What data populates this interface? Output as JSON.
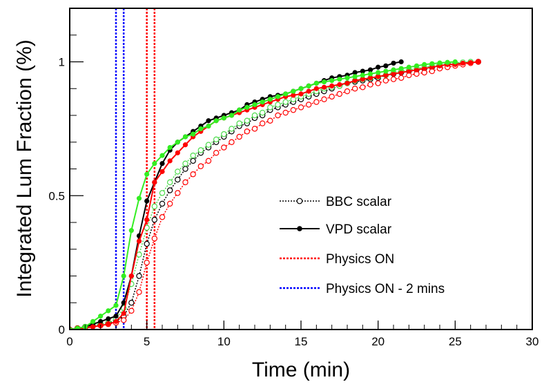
{
  "chart_data": {
    "type": "line",
    "title": "",
    "xlabel": "Time (min)",
    "ylabel": "Integrated Lum Fraction (%)",
    "xlim": [
      0,
      30
    ],
    "ylim": [
      0,
      1.2
    ],
    "x_ticks": [
      0,
      5,
      10,
      15,
      20,
      25,
      30
    ],
    "x_tick_labels": [
      "0",
      "5",
      "10",
      "15",
      "20",
      "25",
      "30"
    ],
    "y_ticks": [
      0,
      0.5,
      1
    ],
    "y_tick_labels": [
      "0",
      "0.5",
      "1"
    ],
    "grid": false,
    "legend_position": "right",
    "legend": [
      {
        "label": "BBC scalar",
        "style": "dotted-open-circle",
        "color": "#000000"
      },
      {
        "label": "VPD scalar",
        "style": "solid-filled-circle",
        "color": "#000000"
      },
      {
        "label": "Physics ON",
        "style": "dotted-line",
        "color": "#ff0000"
      },
      {
        "label": "Physics ON - 2 mins",
        "style": "dotted-line",
        "color": "#0000ff"
      }
    ],
    "vertical_lines": [
      {
        "x": 3.0,
        "color": "#0000ff"
      },
      {
        "x": 3.5,
        "color": "#0000ff"
      },
      {
        "x": 5.0,
        "color": "#ff0000"
      },
      {
        "x": 5.5,
        "color": "#ff0000"
      }
    ],
    "series": [
      {
        "name": "BBC scalar",
        "color": "#000000",
        "marker": "open",
        "line": "dotted",
        "x": [
          0,
          0.5,
          1,
          1.5,
          2,
          2.5,
          3,
          3.5,
          4,
          4.5,
          5,
          5.5,
          6,
          6.5,
          7,
          7.5,
          8,
          8.5,
          9,
          9.5,
          10,
          10.5,
          11,
          11.5,
          12,
          12.5,
          13,
          13.5,
          14,
          14.5,
          15,
          15.5,
          16,
          16.5,
          17,
          17.5,
          18,
          18.5,
          19,
          19.5,
          20,
          20.5,
          21,
          21.5,
          22,
          22.5,
          23,
          23.5,
          24,
          24.5,
          25,
          25.5,
          26,
          26.5
        ],
        "y": [
          0,
          0.005,
          0.01,
          0.015,
          0.02,
          0.025,
          0.03,
          0.05,
          0.1,
          0.2,
          0.32,
          0.41,
          0.47,
          0.52,
          0.56,
          0.6,
          0.63,
          0.66,
          0.68,
          0.7,
          0.72,
          0.74,
          0.76,
          0.77,
          0.79,
          0.8,
          0.82,
          0.83,
          0.84,
          0.85,
          0.86,
          0.87,
          0.88,
          0.89,
          0.9,
          0.91,
          0.92,
          0.925,
          0.93,
          0.935,
          0.94,
          0.95,
          0.955,
          0.96,
          0.965,
          0.97,
          0.975,
          0.98,
          0.985,
          0.99,
          0.993,
          0.996,
          0.998,
          1.0
        ]
      },
      {
        "name": "",
        "color": "#4ddc4d",
        "marker": "open",
        "line": "dotted",
        "x": [
          0,
          0.5,
          1,
          1.5,
          2,
          2.5,
          3,
          3.5,
          4,
          4.5,
          5,
          5.5,
          6,
          6.5,
          7,
          7.5,
          8,
          8.5,
          9,
          9.5,
          10,
          10.5,
          11,
          11.5,
          12,
          12.5,
          13,
          13.5,
          14,
          14.5,
          15,
          15.5,
          16,
          16.5,
          17,
          17.5,
          18,
          18.5,
          19,
          19.5,
          20,
          20.5,
          21,
          21.5,
          22,
          22.5,
          23,
          23.5,
          24,
          24.5,
          25,
          25.5,
          26
        ],
        "y": [
          0,
          0.005,
          0.01,
          0.015,
          0.02,
          0.025,
          0.04,
          0.08,
          0.17,
          0.28,
          0.38,
          0.46,
          0.51,
          0.55,
          0.59,
          0.62,
          0.65,
          0.67,
          0.69,
          0.71,
          0.73,
          0.75,
          0.77,
          0.78,
          0.8,
          0.81,
          0.83,
          0.84,
          0.85,
          0.86,
          0.87,
          0.88,
          0.89,
          0.9,
          0.905,
          0.91,
          0.92,
          0.93,
          0.935,
          0.94,
          0.945,
          0.95,
          0.96,
          0.965,
          0.97,
          0.975,
          0.98,
          0.985,
          0.99,
          0.993,
          0.996,
          0.998,
          1.0
        ]
      },
      {
        "name": "",
        "color": "#ff0000",
        "marker": "open",
        "line": "dotted",
        "x": [
          0,
          0.5,
          1,
          1.5,
          2,
          2.5,
          3,
          3.5,
          4,
          4.5,
          5,
          5.5,
          6,
          6.5,
          7,
          7.5,
          8,
          8.5,
          9,
          9.5,
          10,
          10.5,
          11,
          11.5,
          12,
          12.5,
          13,
          13.5,
          14,
          14.5,
          15,
          15.5,
          16,
          16.5,
          17,
          17.5,
          18,
          18.5,
          19,
          19.5,
          20,
          20.5,
          21,
          21.5,
          22,
          22.5,
          23,
          23.5,
          24,
          24.5,
          25,
          25.5,
          26,
          26.5
        ],
        "y": [
          0,
          0.005,
          0.008,
          0.012,
          0.015,
          0.02,
          0.025,
          0.035,
          0.07,
          0.14,
          0.25,
          0.34,
          0.42,
          0.47,
          0.51,
          0.55,
          0.58,
          0.61,
          0.63,
          0.66,
          0.68,
          0.7,
          0.72,
          0.74,
          0.75,
          0.77,
          0.78,
          0.8,
          0.81,
          0.82,
          0.83,
          0.84,
          0.85,
          0.86,
          0.87,
          0.88,
          0.89,
          0.9,
          0.905,
          0.915,
          0.92,
          0.93,
          0.935,
          0.94,
          0.95,
          0.955,
          0.96,
          0.965,
          0.975,
          0.98,
          0.985,
          0.99,
          0.995,
          1.0
        ]
      },
      {
        "name": "VPD scalar",
        "color": "#000000",
        "marker": "filled",
        "line": "solid",
        "x": [
          0,
          0.5,
          1,
          1.5,
          2,
          2.5,
          3,
          3.5,
          4,
          4.5,
          5,
          5.5,
          6,
          6.5,
          7,
          7.5,
          8,
          8.5,
          9,
          9.5,
          10,
          10.5,
          11,
          11.5,
          12,
          12.5,
          13,
          13.5,
          14,
          14.5,
          15,
          15.5,
          16,
          16.5,
          17,
          17.5,
          18,
          18.5,
          19,
          19.5,
          20,
          20.5,
          21,
          21.5
        ],
        "y": [
          0,
          0.005,
          0.01,
          0.02,
          0.03,
          0.04,
          0.05,
          0.1,
          0.2,
          0.35,
          0.48,
          0.55,
          0.62,
          0.67,
          0.7,
          0.72,
          0.74,
          0.76,
          0.78,
          0.79,
          0.8,
          0.81,
          0.82,
          0.84,
          0.85,
          0.86,
          0.87,
          0.875,
          0.88,
          0.89,
          0.9,
          0.91,
          0.92,
          0.93,
          0.94,
          0.945,
          0.95,
          0.96,
          0.965,
          0.97,
          0.98,
          0.985,
          0.995,
          1.0
        ]
      },
      {
        "name": "",
        "color": "#ff0000",
        "marker": "filled",
        "line": "solid",
        "x": [
          0,
          0.5,
          1,
          1.5,
          2,
          2.5,
          3,
          3.5,
          4,
          4.5,
          5,
          5.5,
          6,
          6.5,
          7,
          7.5,
          8,
          8.5,
          9,
          9.5,
          10,
          10.5,
          11,
          11.5,
          12,
          12.5,
          13,
          13.5,
          14,
          14.5,
          15,
          15.5,
          16,
          16.5,
          17,
          17.5,
          18,
          18.5,
          19,
          19.5,
          20,
          20.5,
          21,
          21.5,
          22,
          22.5,
          23,
          23.5,
          24,
          24.5,
          25,
          25.5,
          26,
          26.5
        ],
        "y": [
          0,
          0.003,
          0.006,
          0.01,
          0.015,
          0.02,
          0.03,
          0.06,
          0.2,
          0.33,
          0.41,
          0.55,
          0.59,
          0.63,
          0.66,
          0.69,
          0.72,
          0.74,
          0.76,
          0.78,
          0.79,
          0.8,
          0.81,
          0.82,
          0.83,
          0.84,
          0.85,
          0.86,
          0.87,
          0.875,
          0.88,
          0.89,
          0.9,
          0.905,
          0.91,
          0.915,
          0.92,
          0.93,
          0.935,
          0.94,
          0.945,
          0.95,
          0.955,
          0.96,
          0.965,
          0.97,
          0.975,
          0.98,
          0.985,
          0.99,
          0.99,
          0.995,
          0.997,
          1.0
        ]
      },
      {
        "name": "",
        "color": "#33ee22",
        "marker": "filled",
        "line": "solid",
        "x": [
          0,
          0.5,
          1,
          1.5,
          2,
          2.5,
          3,
          3.5,
          4,
          4.5,
          5,
          5.5,
          6,
          6.5,
          7,
          7.5,
          8,
          8.5,
          9,
          9.5,
          10,
          10.5,
          11,
          11.5,
          12,
          12.5,
          13,
          13.5,
          14,
          14.5,
          15,
          15.5,
          16,
          16.5,
          17,
          17.5,
          18,
          18.5,
          19,
          19.5,
          20,
          20.5,
          21,
          21.5,
          22,
          22.5,
          23,
          23.5,
          24,
          24.5,
          25
        ],
        "y": [
          0,
          0.005,
          0.01,
          0.03,
          0.05,
          0.07,
          0.09,
          0.2,
          0.37,
          0.49,
          0.58,
          0.62,
          0.65,
          0.68,
          0.7,
          0.72,
          0.73,
          0.75,
          0.76,
          0.78,
          0.79,
          0.8,
          0.82,
          0.83,
          0.84,
          0.85,
          0.86,
          0.87,
          0.88,
          0.89,
          0.9,
          0.91,
          0.92,
          0.925,
          0.93,
          0.935,
          0.94,
          0.945,
          0.95,
          0.955,
          0.96,
          0.965,
          0.97,
          0.975,
          0.98,
          0.985,
          0.99,
          0.993,
          0.996,
          0.998,
          1.0
        ]
      }
    ]
  }
}
